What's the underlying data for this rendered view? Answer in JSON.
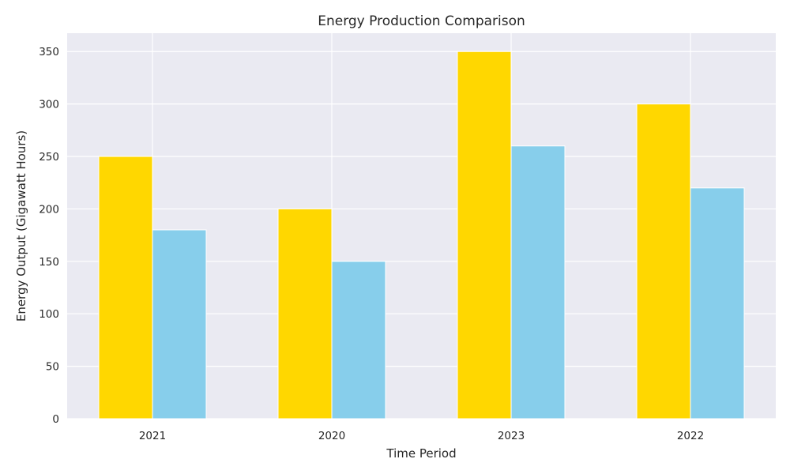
{
  "chart_data": {
    "type": "bar",
    "title": "Energy Production Comparison",
    "xlabel": "Time Period",
    "ylabel": "Energy Output (Gigawatt Hours)",
    "categories": [
      "2021",
      "2020",
      "2023",
      "2022"
    ],
    "series": [
      {
        "color": "#FFD700",
        "values": [
          250,
          200,
          350,
          300
        ]
      },
      {
        "color": "#87CEEB",
        "values": [
          180,
          150,
          260,
          220
        ]
      }
    ],
    "ylim": [
      0,
      367.5
    ],
    "yticks": [
      0,
      50,
      100,
      150,
      200,
      250,
      300,
      350
    ],
    "grid": true,
    "background": "#EAEAF2",
    "grid_color": "#FFFFFF",
    "legend": false
  }
}
